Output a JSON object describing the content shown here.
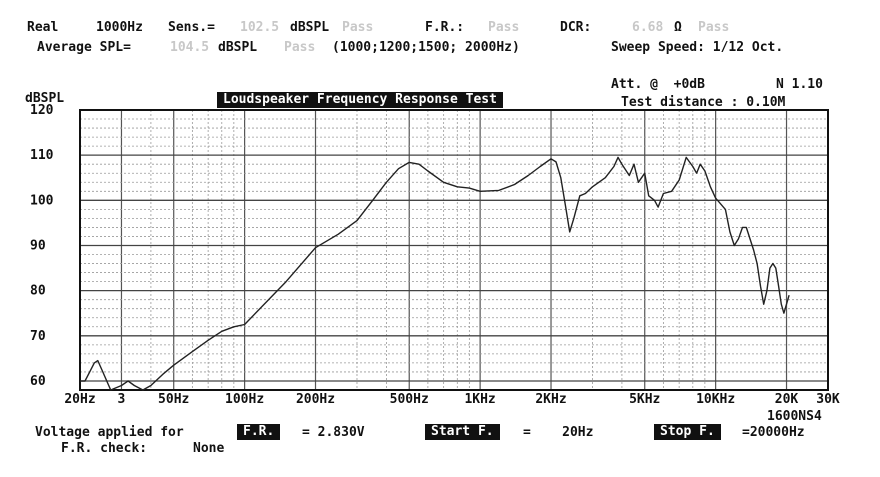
{
  "header": {
    "line1": {
      "mode": "Real",
      "freq": "1000Hz",
      "sens_label": "Sens.=",
      "sens_value": "102.5",
      "sens_unit": "dBSPL",
      "sens_status": "Pass",
      "fr_label": "F.R.:",
      "fr_status": "Pass",
      "dcr_label": "DCR:",
      "dcr_value": "6.68",
      "dcr_unit": "Ω",
      "dcr_status": "Pass"
    },
    "line2": {
      "avg_label": "Average SPL=",
      "avg_value": "104.5",
      "avg_unit": "dBSPL",
      "avg_status": "Pass",
      "avg_freqs": "(1000;1200;1500; 2000Hz)",
      "sweep": "Sweep Speed: 1/12 Oct."
    },
    "att": "Att. @  +0dB",
    "n": "N 1.10",
    "test_distance": "Test distance : 0.10M"
  },
  "footer": {
    "voltage_label": "Voltage applied for",
    "fr_box": "F.R.",
    "voltage_value": "= 2.830V",
    "start_box": "Start F.",
    "start_value": "=    20Hz",
    "stop_box": "Stop F.",
    "stop_value": "=20000Hz",
    "fr_check_label": "F.R. check:",
    "fr_check_value": "None",
    "model": "1600NS4"
  },
  "chart_data": {
    "type": "line",
    "title": "Loudspeaker Frequency Response Test",
    "ylabel": "dBSPL",
    "xlabel": "",
    "xscale": "log",
    "xlim": [
      20,
      30000
    ],
    "ylim": [
      58,
      120
    ],
    "grid": true,
    "y_ticks": [
      60,
      70,
      80,
      90,
      100,
      110,
      120
    ],
    "x_tick_labels": [
      {
        "f": 20,
        "label": "20Hz"
      },
      {
        "f": 30,
        "label": "3"
      },
      {
        "f": 50,
        "label": "50Hz"
      },
      {
        "f": 100,
        "label": "100Hz"
      },
      {
        "f": 200,
        "label": "200Hz"
      },
      {
        "f": 500,
        "label": "500Hz"
      },
      {
        "f": 1000,
        "label": "1KHz"
      },
      {
        "f": 2000,
        "label": "2KHz"
      },
      {
        "f": 5000,
        "label": "5KHz"
      },
      {
        "f": 10000,
        "label": "10KHz"
      },
      {
        "f": 20000,
        "label": "20K"
      },
      {
        "f": 30000,
        "label": "30K"
      }
    ],
    "series": [
      {
        "color": "#222222",
        "x": [
          20,
          21,
          22,
          23,
          23.8,
          25,
          27,
          30,
          32,
          34,
          37,
          40,
          45,
          50,
          60,
          70,
          80,
          90,
          100,
          150,
          200,
          250,
          300,
          350,
          400,
          450,
          500,
          550,
          600,
          700,
          800,
          900,
          1000,
          1200,
          1400,
          1600,
          1800,
          2000,
          2100,
          2200,
          2300,
          2400,
          2500,
          2650,
          2800,
          3000,
          3400,
          3700,
          3850,
          4000,
          4300,
          4500,
          4700,
          5000,
          5200,
          5500,
          5700,
          6000,
          6500,
          7000,
          7500,
          8000,
          8300,
          8600,
          9000,
          9500,
          10000,
          11000,
          11500,
          12000,
          12500,
          13000,
          13500,
          14500,
          15000,
          15500,
          16000,
          16500,
          17000,
          17500,
          18000,
          18500,
          19000,
          19500,
          20000,
          20500
        ],
        "y": [
          60,
          60,
          62,
          64,
          64.5,
          62,
          58,
          59,
          60,
          59,
          58,
          59,
          61.5,
          63.5,
          66.5,
          69,
          71,
          72,
          72.5,
          82,
          89.5,
          92.5,
          95.5,
          100,
          104,
          107,
          108.4,
          108,
          106.5,
          104,
          103,
          102.7,
          102,
          102.2,
          103.5,
          105.5,
          107.5,
          109.2,
          108.5,
          105,
          99,
          93,
          96,
          101,
          101.5,
          103,
          105,
          107.5,
          109.5,
          108,
          105.5,
          108,
          104,
          106,
          101,
          100,
          98.5,
          101.5,
          102,
          104.5,
          109.5,
          107.5,
          106,
          108,
          106.5,
          103,
          100.5,
          98,
          93,
          90,
          91.5,
          94,
          94,
          89,
          86,
          81,
          77,
          80,
          85,
          86,
          85,
          81,
          77,
          75,
          77,
          79
        ]
      }
    ]
  }
}
